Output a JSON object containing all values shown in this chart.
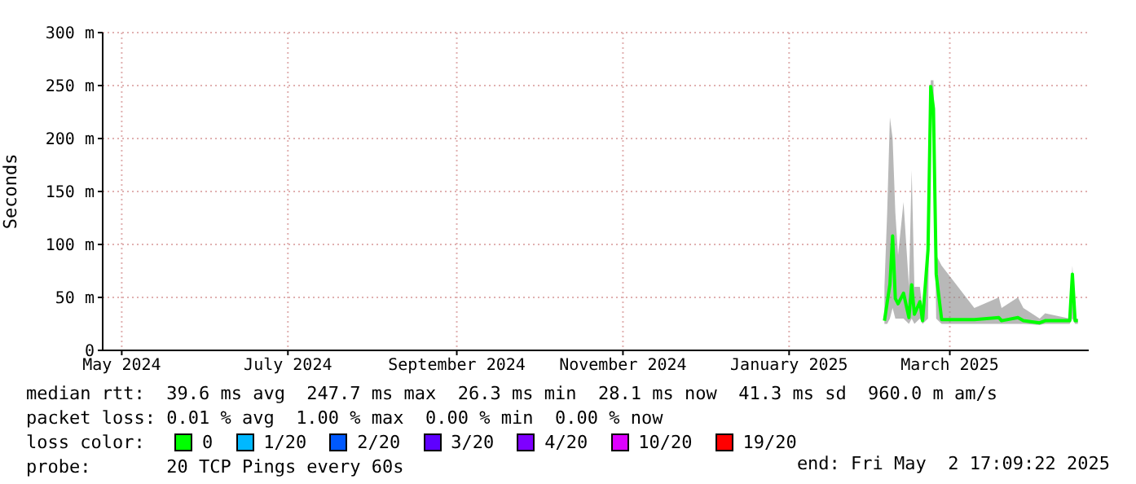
{
  "chart_data": {
    "type": "line",
    "ylabel": "Seconds",
    "legend_title": "loss color:",
    "legend": "bottom",
    "grid": true,
    "x": [
      "2025-02-05",
      "2025-02-06",
      "2025-02-07",
      "2025-02-08",
      "2025-02-09",
      "2025-02-10",
      "2025-02-12",
      "2025-02-14",
      "2025-02-15",
      "2025-02-16",
      "2025-02-18",
      "2025-02-19",
      "2025-02-21",
      "2025-02-22",
      "2025-02-23",
      "2025-02-24",
      "2025-02-26",
      "2025-03-10",
      "2025-03-19",
      "2025-03-20",
      "2025-03-26",
      "2025-03-28",
      "2025-04-03",
      "2025-04-05",
      "2025-04-14",
      "2025-04-15",
      "2025-04-16",
      "2025-04-17"
    ],
    "series": [
      {
        "name": "0",
        "color": "#00ff00",
        "values": [
          28,
          45,
          62,
          108,
          49,
          44,
          54,
          31,
          62,
          34,
          46,
          28,
          95,
          249,
          228,
          72,
          29,
          29,
          31,
          28,
          31,
          28,
          26,
          28,
          28,
          72,
          28,
          28
        ],
        "lower": [
          25,
          25,
          30,
          40,
          30,
          30,
          30,
          25,
          30,
          25,
          30,
          25,
          30,
          240,
          200,
          30,
          25,
          25,
          25,
          25,
          25,
          25,
          24,
          25,
          25,
          30,
          25,
          25
        ],
        "upper": [
          60,
          130,
          220,
          200,
          130,
          90,
          140,
          60,
          170,
          60,
          60,
          40,
          100,
          255,
          255,
          90,
          80,
          40,
          50,
          40,
          50,
          40,
          30,
          35,
          30,
          80,
          30,
          30
        ]
      },
      {
        "name": "1/20",
        "color": "#00b8ff",
        "values": [
          null,
          null,
          null,
          null,
          null,
          null,
          null,
          null,
          null,
          null,
          null,
          null,
          null,
          null,
          null,
          null,
          null,
          null,
          null,
          null,
          null,
          null,
          null,
          null,
          null,
          null,
          null,
          null
        ]
      },
      {
        "name": "2/20",
        "color": "#0059ff",
        "values": [
          null,
          null,
          null,
          null,
          null,
          null,
          null,
          null,
          null,
          null,
          null,
          null,
          null,
          null,
          null,
          null,
          null,
          null,
          null,
          null,
          null,
          null,
          null,
          null,
          null,
          null,
          null,
          null
        ]
      },
      {
        "name": "3/20",
        "color": "#5e00ff",
        "values": [
          null,
          null,
          null,
          null,
          null,
          null,
          null,
          null,
          null,
          null,
          null,
          null,
          null,
          null,
          null,
          null,
          null,
          null,
          null,
          null,
          null,
          null,
          null,
          null,
          null,
          null,
          null,
          null
        ]
      },
      {
        "name": "4/20",
        "color": "#7e00ff",
        "values": [
          null,
          null,
          null,
          null,
          null,
          null,
          null,
          null,
          null,
          null,
          null,
          null,
          null,
          null,
          null,
          null,
          null,
          null,
          null,
          null,
          null,
          null,
          null,
          null,
          null,
          null,
          null,
          null
        ]
      },
      {
        "name": "10/20",
        "color": "#dd00ff",
        "values": [
          null,
          null,
          null,
          null,
          null,
          null,
          null,
          null,
          null,
          null,
          null,
          null,
          null,
          null,
          null,
          null,
          null,
          null,
          null,
          null,
          null,
          null,
          null,
          null,
          null,
          null,
          null,
          null
        ]
      },
      {
        "name": "19/20",
        "color": "#ff0000",
        "values": [
          null,
          null,
          null,
          null,
          null,
          null,
          null,
          null,
          null,
          null,
          null,
          null,
          null,
          null,
          null,
          null,
          null,
          null,
          null,
          null,
          null,
          null,
          null,
          null,
          null,
          null,
          null,
          null
        ]
      }
    ],
    "xlim": [
      "2024-04-24",
      "2025-04-21"
    ],
    "xticks": [
      {
        "value": "2024-05-01",
        "label": "May 2024"
      },
      {
        "value": "2024-07-01",
        "label": "July 2024"
      },
      {
        "value": "2024-09-01",
        "label": "September 2024"
      },
      {
        "value": "2024-11-01",
        "label": "November 2024"
      },
      {
        "value": "2025-01-01",
        "label": "January 2025"
      },
      {
        "value": "2025-03-01",
        "label": "March 2025"
      }
    ],
    "ylim": [
      0,
      300
    ],
    "yticks": [
      0,
      {
        "value": 50,
        "label": "50 m"
      },
      {
        "value": 100,
        "label": "100 m"
      },
      {
        "value": 150,
        "label": "150 m"
      },
      {
        "value": 200,
        "label": "200 m"
      },
      {
        "value": 250,
        "label": "250 m"
      },
      {
        "value": 300,
        "label": "300 m"
      }
    ],
    "annotations": [
      "median rtt:  39.6 ms avg  247.7 ms max  26.3 ms min  28.1 ms now  41.3 ms sd  960.0 m am/s",
      "packet loss: 0.01 % avg  1.00 % max  0.00 % min  0.00 % now",
      "probe:       20 TCP Pings every 60s",
      "end: Fri May  2 17:09:22 2025"
    ]
  }
}
